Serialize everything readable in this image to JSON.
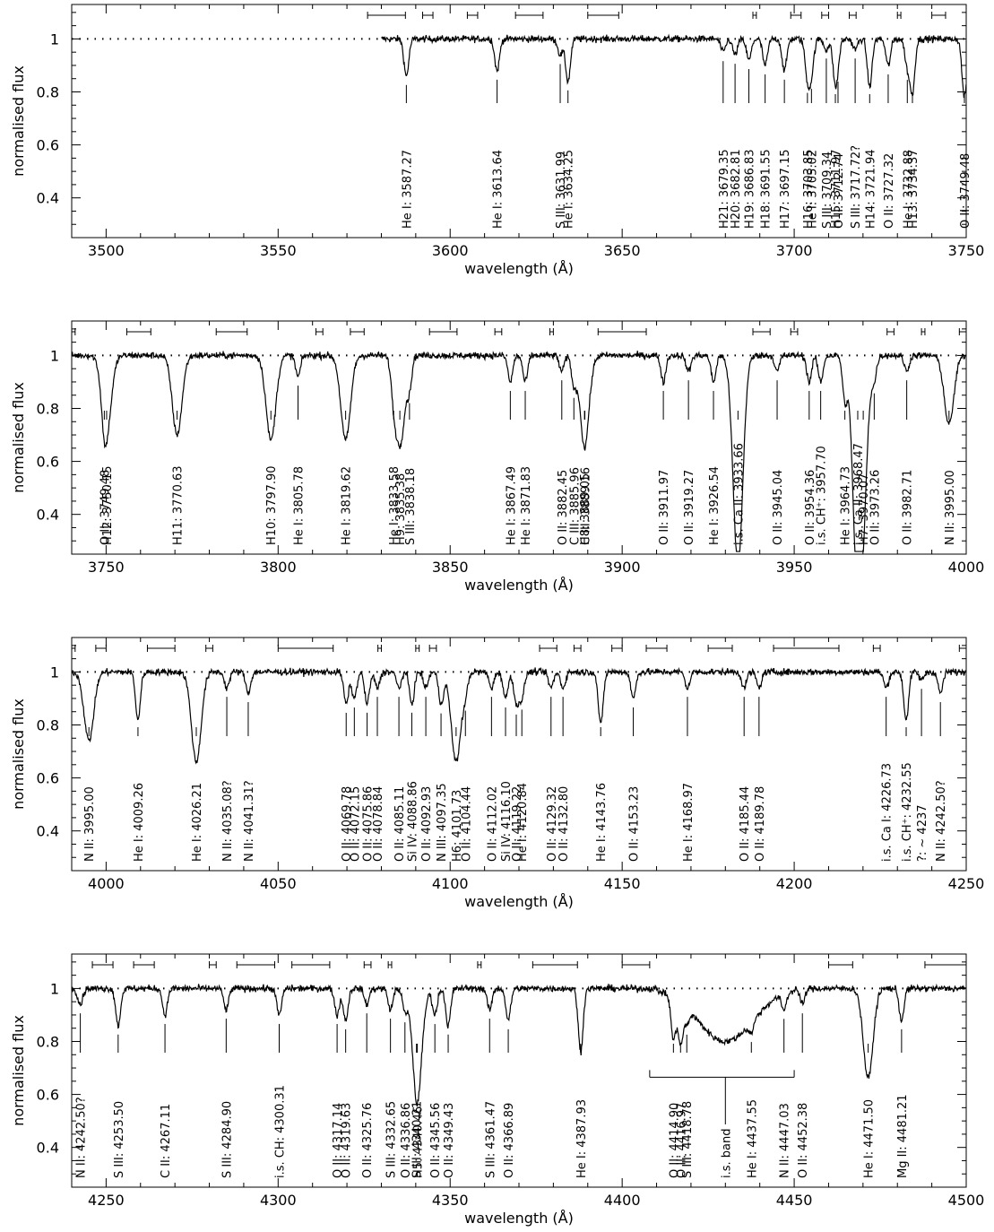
{
  "chart_data": [
    {
      "type": "line",
      "panel": "panel-1",
      "xlim": [
        3490,
        3750
      ],
      "ylim": [
        0.25,
        1.13
      ],
      "xticks": [
        "3500",
        "3550",
        "3600",
        "3650",
        "3700",
        "3750"
      ],
      "xtick_values": [
        3500,
        3550,
        3600,
        3650,
        3700,
        3750
      ],
      "yticks": [
        "0.4",
        "0.6",
        "0.8",
        "1"
      ],
      "ytick_values": [
        0.4,
        0.6,
        0.8,
        1.0
      ],
      "xlabel": "wavelength (Å)",
      "ylabel": "normalised flux",
      "dotted_start": 3490,
      "data_start": 3580,
      "continuum_brackets": [
        [
          3576,
          3587
        ],
        [
          3592,
          3595
        ],
        [
          3605,
          3608
        ],
        [
          3619,
          3627
        ],
        [
          3640,
          3649
        ],
        [
          3688,
          3689
        ],
        [
          3699,
          3702
        ],
        [
          3708,
          3710
        ],
        [
          3716,
          3718
        ],
        [
          3730,
          3731
        ],
        [
          3740,
          3744
        ]
      ],
      "lines": [
        {
          "w": 3587.27,
          "d": 0.14,
          "label": "He I:  3587.27"
        },
        {
          "w": 3613.64,
          "d": 0.12,
          "label": "He I:  3613.64"
        },
        {
          "w": 3631.99,
          "d": 0.06,
          "label": "S III:  3631.99"
        },
        {
          "w": 3634.25,
          "d": 0.16,
          "label": "He I:  3634.25"
        },
        {
          "w": 3679.35,
          "d": 0.05,
          "label": "H21:  3679.35"
        },
        {
          "w": 3682.81,
          "d": 0.06,
          "label": "H20:  3682.81"
        },
        {
          "w": 3686.83,
          "d": 0.08,
          "label": "H19:  3686.83"
        },
        {
          "w": 3691.55,
          "d": 0.1,
          "label": "H18:  3691.55"
        },
        {
          "w": 3697.15,
          "d": 0.12,
          "label": "H17:  3697.15"
        },
        {
          "w": 3703.85,
          "d": 0.14,
          "label": "H16:  3703.85"
        },
        {
          "w": 3705.02,
          "d": 0.12,
          "label": "He I:  3705.02"
        },
        {
          "w": 3709.34,
          "d": 0.04,
          "label": "S III:  3709.34"
        },
        {
          "w": 3711.97,
          "d": 0.16,
          "label": "H15:  3711.97"
        },
        {
          "w": 3712.74,
          "d": 0.04,
          "label": "O II:  3712.74"
        },
        {
          "w": 3717.72,
          "d": 0.04,
          "label": "S III:  3717.72?"
        },
        {
          "w": 3721.94,
          "d": 0.18,
          "label": "H14:  3721.94"
        },
        {
          "w": 3727.32,
          "d": 0.1,
          "label": "O II:  3727.32"
        },
        {
          "w": 3732.88,
          "d": 0.1,
          "label": "He I:  3732.88"
        },
        {
          "w": 3734.37,
          "d": 0.2,
          "label": "H13:  3734.37"
        },
        {
          "w": 3749.48,
          "d": 0.22,
          "label": "O II:  3749.48"
        }
      ]
    },
    {
      "type": "line",
      "panel": "panel-2",
      "xlim": [
        3740,
        4000
      ],
      "ylim": [
        0.25,
        1.13
      ],
      "xticks": [
        "3750",
        "3800",
        "3850",
        "3900",
        "3950",
        "4000"
      ],
      "xtick_values": [
        3750,
        3800,
        3850,
        3900,
        3950,
        4000
      ],
      "yticks": [
        "0.4",
        "0.6",
        "0.8",
        "1"
      ],
      "yticks_values_note": "",
      "ytick_values": [
        0.4,
        0.6,
        0.8,
        1.0
      ],
      "xlabel": "wavelength (Å)",
      "ylabel": "normalised flux",
      "dotted_start": 3740,
      "data_start": 3740,
      "continuum_brackets": [
        [
          3740,
          3741
        ],
        [
          3756,
          3763
        ],
        [
          3782,
          3791
        ],
        [
          3811,
          3813
        ],
        [
          3821,
          3825
        ],
        [
          3844,
          3852
        ],
        [
          3863,
          3865
        ],
        [
          3879,
          3880
        ],
        [
          3893,
          3907
        ],
        [
          3938,
          3943
        ],
        [
          3949,
          3951
        ],
        [
          3977,
          3979
        ],
        [
          3987,
          3988
        ],
        [
          3998,
          4000
        ]
      ],
      "lines": [
        {
          "w": 3749.48,
          "d": 0.08,
          "label": "O II:  3749.48"
        },
        {
          "w": 3750.15,
          "d": 0.28,
          "label": "H12:  3750.15"
        },
        {
          "w": 3770.63,
          "d": 0.3,
          "label": "H11:  3770.63"
        },
        {
          "w": 3797.9,
          "d": 0.32,
          "label": "H10:  3797.90"
        },
        {
          "w": 3805.78,
          "d": 0.08,
          "label": "He I:  3805.78"
        },
        {
          "w": 3819.62,
          "d": 0.32,
          "label": "He I:  3819.62"
        },
        {
          "w": 3833.58,
          "d": 0.08,
          "label": "He I:  3833.58"
        },
        {
          "w": 3835.38,
          "d": 0.34,
          "label": "H9:  3835.38"
        },
        {
          "w": 3838.18,
          "d": 0.1,
          "label": "S III:  3838.18"
        },
        {
          "w": 3867.49,
          "d": 0.1,
          "label": "He I:  3867.49"
        },
        {
          "w": 3871.83,
          "d": 0.1,
          "label": "He I:  3871.83"
        },
        {
          "w": 3882.45,
          "d": 0.06,
          "label": "O II:  3882.45"
        },
        {
          "w": 3885.96,
          "d": 0.1,
          "label": "C III:  3885.96"
        },
        {
          "w": 3889.05,
          "d": 0.3,
          "label": "H8:  3889.05"
        },
        {
          "w": 3889.16,
          "d": 0.05,
          "label": "C III:  3889.16"
        },
        {
          "w": 3911.97,
          "d": 0.1,
          "label": "O II:  3911.97"
        },
        {
          "w": 3919.27,
          "d": 0.06,
          "label": "O II:  3919.27"
        },
        {
          "w": 3926.54,
          "d": 0.1,
          "label": "He I:  3926.54"
        },
        {
          "w": 3933.66,
          "d": 0.8,
          "label": "i.s. Ca II:  3933.66"
        },
        {
          "w": 3945.04,
          "d": 0.06,
          "label": "O II:  3945.04"
        },
        {
          "w": 3954.36,
          "d": 0.1,
          "label": "O II:  3954.36"
        },
        {
          "w": 3957.7,
          "d": 0.1,
          "label": "i.s. CH⁺:  3957.70"
        },
        {
          "w": 3964.73,
          "d": 0.16,
          "label": "He I:  3964.73"
        },
        {
          "w": 3968.47,
          "d": 0.8,
          "label": "i.s. Ca II:  3968.47"
        },
        {
          "w": 3970.07,
          "d": 0.36,
          "label": "H7:  3970.07"
        },
        {
          "w": 3973.26,
          "d": 0.08,
          "label": "O II:  3973.26"
        },
        {
          "w": 3982.71,
          "d": 0.06,
          "label": "O II:  3982.71"
        },
        {
          "w": 3995.0,
          "d": 0.26,
          "label": "N II:  3995.00"
        }
      ]
    },
    {
      "type": "line",
      "panel": "panel-3",
      "xlim": [
        3990,
        4250
      ],
      "ylim": [
        0.25,
        1.13
      ],
      "xticks": [
        "4000",
        "4050",
        "4100",
        "4150",
        "4200",
        "4250"
      ],
      "xtick_values": [
        4000,
        4050,
        4100,
        4150,
        4200,
        4250
      ],
      "yticks": [
        "0.4",
        "0.6",
        "0.8",
        "1"
      ],
      "ytick_values": [
        0.4,
        0.6,
        0.8,
        1.0
      ],
      "xlabel": "wavelength (Å)",
      "ylabel": "normalised flux",
      "dotted_start": 3990,
      "data_start": 3990,
      "continuum_brackets": [
        [
          3990,
          3991
        ],
        [
          3997,
          4000
        ],
        [
          4012,
          4020
        ],
        [
          4029,
          4031
        ],
        [
          4050,
          4066
        ],
        [
          4079,
          4080
        ],
        [
          4090,
          4091
        ],
        [
          4094,
          4096
        ],
        [
          4126,
          4131
        ],
        [
          4136,
          4138
        ],
        [
          4147,
          4150
        ],
        [
          4157,
          4163
        ],
        [
          4175,
          4182
        ],
        [
          4194,
          4213
        ],
        [
          4223,
          4225
        ],
        [
          4248,
          4250
        ]
      ],
      "lines": [
        {
          "w": 3995.0,
          "d": 0.26,
          "label": "N II:  3995.00"
        },
        {
          "w": 4009.26,
          "d": 0.18,
          "label": "He I:  4009.26"
        },
        {
          "w": 4026.21,
          "d": 0.34,
          "label": "He I:  4026.21"
        },
        {
          "w": 4035.08,
          "d": 0.06,
          "label": "N II:  4035.08?"
        },
        {
          "w": 4041.31,
          "d": 0.08,
          "label": "N II:  4041.31?"
        },
        {
          "w": 4069.78,
          "d": 0.12,
          "label": "O II:  4069.78"
        },
        {
          "w": 4072.15,
          "d": 0.1,
          "label": "O II:  4072.15"
        },
        {
          "w": 4075.86,
          "d": 0.12,
          "label": "O II:  4075.86"
        },
        {
          "w": 4078.84,
          "d": 0.06,
          "label": "O II:  4078.84"
        },
        {
          "w": 4085.11,
          "d": 0.06,
          "label": "O II:  4085.11"
        },
        {
          "w": 4088.86,
          "d": 0.12,
          "label": "Si IV:  4088.86"
        },
        {
          "w": 4092.93,
          "d": 0.06,
          "label": "O II:  4092.93"
        },
        {
          "w": 4097.35,
          "d": 0.12,
          "label": "N III:  4097.35"
        },
        {
          "w": 4101.73,
          "d": 0.34,
          "label": "H6:  4101.73"
        },
        {
          "w": 4104.44,
          "d": 0.06,
          "label": "O II:  4104.44"
        },
        {
          "w": 4112.02,
          "d": 0.06,
          "label": "O II:  4112.02"
        },
        {
          "w": 4116.1,
          "d": 0.1,
          "label": "Si IV:  4116.10"
        },
        {
          "w": 4119.22,
          "d": 0.12,
          "label": "O II:  4119.22"
        },
        {
          "w": 4120.84,
          "d": 0.1,
          "label": "He I:  4120.84"
        },
        {
          "w": 4129.32,
          "d": 0.06,
          "label": "O II:  4129.32"
        },
        {
          "w": 4132.8,
          "d": 0.06,
          "label": "O II:  4132.80"
        },
        {
          "w": 4143.76,
          "d": 0.2,
          "label": "He I:  4143.76"
        },
        {
          "w": 4153.23,
          "d": 0.1,
          "label": "O II:  4153.23"
        },
        {
          "w": 4168.97,
          "d": 0.06,
          "label": "He I:  4168.97"
        },
        {
          "w": 4185.44,
          "d": 0.06,
          "label": "O II:  4185.44"
        },
        {
          "w": 4189.78,
          "d": 0.06,
          "label": "O II:  4189.78"
        },
        {
          "w": 4226.73,
          "d": 0.06,
          "label": "i.s. Ca I:  4226.73"
        },
        {
          "w": 4232.55,
          "d": 0.18,
          "label": "i.s. CH⁺:  4232.55"
        },
        {
          "w": 4237.0,
          "d": 0.03,
          "label": "?:  ~ 4237"
        },
        {
          "w": 4242.5,
          "d": 0.08,
          "label": "N II:  4242.50?"
        }
      ]
    },
    {
      "type": "line",
      "panel": "panel-4",
      "xlim": [
        4240,
        4500
      ],
      "ylim": [
        0.25,
        1.13
      ],
      "xticks": [
        "4250",
        "4300",
        "4350",
        "4400",
        "4450",
        "4500"
      ],
      "xtick_values": [
        4250,
        4300,
        4350,
        4400,
        4450,
        4500
      ],
      "yticks": [
        "0.4",
        "0.6",
        "0.8",
        "1"
      ],
      "ytick_values": [
        0.4,
        0.6,
        0.8,
        1.0
      ],
      "xlabel": "wavelength (Å)",
      "ylabel": "normalised flux",
      "dotted_start": 4240,
      "data_start": 4240,
      "continuum_brackets": [
        [
          4246,
          4252
        ],
        [
          4258,
          4264
        ],
        [
          4280,
          4282
        ],
        [
          4288,
          4299
        ],
        [
          4304,
          4315
        ],
        [
          4325,
          4327
        ],
        [
          4332,
          4333
        ],
        [
          4358,
          4359
        ],
        [
          4374,
          4387
        ],
        [
          4400,
          4408
        ],
        [
          4460,
          4467
        ],
        [
          4488,
          4500
        ]
      ],
      "broad_band": {
        "from": 4410,
        "to": 4450,
        "center": 4430,
        "depth": 0.2,
        "label": "i.s. band"
      },
      "lines": [
        {
          "w": 4242.5,
          "d": 0.06,
          "label": "N II:  4242.50?"
        },
        {
          "w": 4253.5,
          "d": 0.14,
          "label": "S III:  4253.50"
        },
        {
          "w": 4267.11,
          "d": 0.1,
          "label": "C II:  4267.11"
        },
        {
          "w": 4284.9,
          "d": 0.08,
          "label": "S III:  4284.90"
        },
        {
          "w": 4300.31,
          "d": 0.1,
          "label": "i.s. CH:  4300.31"
        },
        {
          "w": 4317.14,
          "d": 0.1,
          "label": "O II:  4317.14"
        },
        {
          "w": 4319.63,
          "d": 0.12,
          "label": "O II:  4319.63"
        },
        {
          "w": 4325.76,
          "d": 0.06,
          "label": "O II:  4325.76"
        },
        {
          "w": 4332.65,
          "d": 0.08,
          "label": "S III:  4332.65"
        },
        {
          "w": 4336.86,
          "d": 0.08,
          "label": "O II:  4336.86"
        },
        {
          "w": 4340.46,
          "d": 0.38,
          "label": "H5:  4340.46"
        },
        {
          "w": 4340.21,
          "d": 0.06,
          "label": "S III:  4340.21"
        },
        {
          "w": 4345.56,
          "d": 0.1,
          "label": "O II:  4345.56"
        },
        {
          "w": 4349.43,
          "d": 0.14,
          "label": "O II:  4349.43"
        },
        {
          "w": 4361.47,
          "d": 0.08,
          "label": "S III:  4361.47"
        },
        {
          "w": 4366.89,
          "d": 0.12,
          "label": "O II:  4366.89"
        },
        {
          "w": 4387.93,
          "d": 0.24,
          "label": "He I:  4387.93"
        },
        {
          "w": 4414.9,
          "d": 0.16,
          "label": "O II:  4414.90"
        },
        {
          "w": 4416.97,
          "d": 0.16,
          "label": "O II:  4416.97"
        },
        {
          "w": 4418.78,
          "d": 0.06,
          "label": "S III:  4418.78"
        },
        {
          "w": 4437.55,
          "d": 0.04,
          "label": "He I:  4437.55"
        },
        {
          "w": 4447.03,
          "d": 0.06,
          "label": "N II:  4447.03"
        },
        {
          "w": 4452.38,
          "d": 0.06,
          "label": "O II:  4452.38"
        },
        {
          "w": 4471.5,
          "d": 0.34,
          "label": "He I:  4471.50"
        },
        {
          "w": 4481.21,
          "d": 0.12,
          "label": "Mg II:  4481.21"
        }
      ]
    }
  ]
}
